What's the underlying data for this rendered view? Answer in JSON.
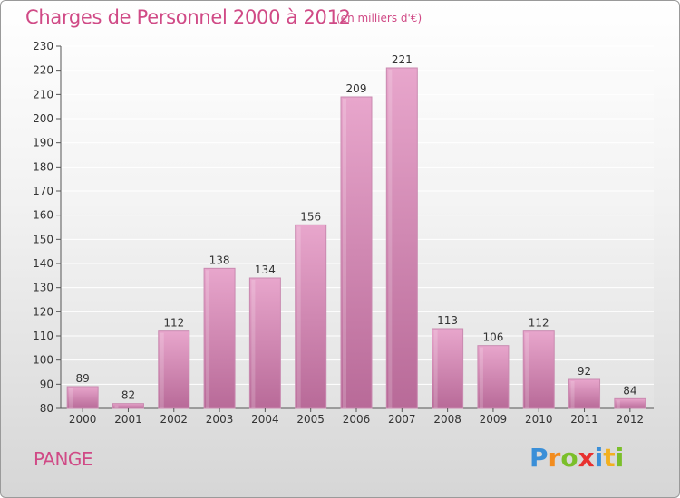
{
  "title": "Charges de Personnel 2000 à 2012",
  "unit_label": "(en milliers d'€)",
  "commune": "PANGE",
  "logo": {
    "text": "Proxiti",
    "letters": [
      {
        "ch": "P",
        "color": "#3a8fd8"
      },
      {
        "ch": "r",
        "color": "#f28c1e"
      },
      {
        "ch": "o",
        "color": "#7bbf2a"
      },
      {
        "ch": "x",
        "color": "#e8312f"
      },
      {
        "ch": "i",
        "color": "#3a8fd8"
      },
      {
        "ch": "t",
        "color": "#f2b01e"
      },
      {
        "ch": "i",
        "color": "#7bbf2a"
      }
    ]
  },
  "colors": {
    "bar_top": "#e8a6cc",
    "bar_bottom": "#b86a98",
    "accent": "#d04a86"
  },
  "chart_data": {
    "type": "bar",
    "categories": [
      "2000",
      "2001",
      "2002",
      "2003",
      "2004",
      "2005",
      "2006",
      "2007",
      "2008",
      "2009",
      "2010",
      "2011",
      "2012"
    ],
    "values": [
      89,
      82,
      112,
      138,
      134,
      156,
      209,
      221,
      113,
      106,
      112,
      92,
      84
    ],
    "ylim": [
      80,
      230
    ],
    "yticks": [
      80,
      90,
      100,
      110,
      120,
      130,
      140,
      150,
      160,
      170,
      180,
      190,
      200,
      210,
      220,
      230
    ],
    "grid": true,
    "data_labels": true
  }
}
